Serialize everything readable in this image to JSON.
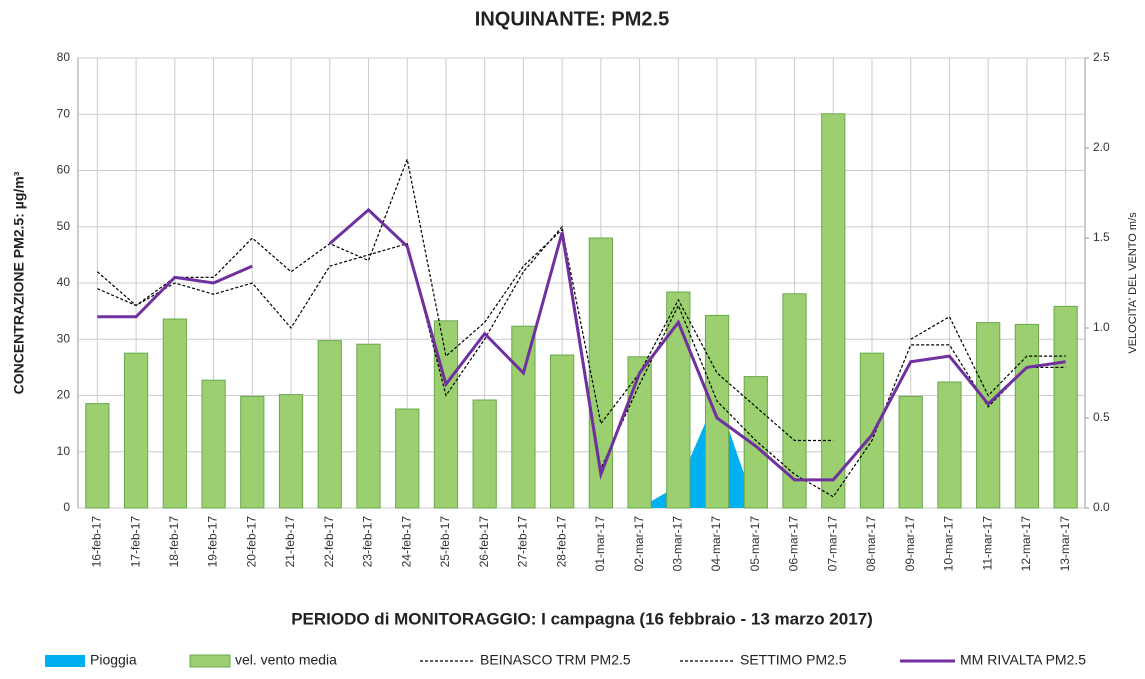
{
  "chart_data": {
    "type": "combo",
    "title": "INQUINANTE: PM2.5",
    "x_label": "PERIODO di MONITORAGGIO: I campagna (16 febbraio - 13 marzo 2017)",
    "y_label": "CONCENTRAZIONE PM2.5: µg/m³",
    "y2_label": "VELOCITA' DEL VENTO m/s",
    "categories": [
      "16-feb-17",
      "17-feb-17",
      "18-feb-17",
      "19-feb-17",
      "20-feb-17",
      "21-feb-17",
      "22-feb-17",
      "23-feb-17",
      "24-feb-17",
      "25-feb-17",
      "26-feb-17",
      "27-feb-17",
      "28-feb-17",
      "01-mar-17",
      "02-mar-17",
      "03-mar-17",
      "04-mar-17",
      "05-mar-17",
      "06-mar-17",
      "07-mar-17",
      "08-mar-17",
      "09-mar-17",
      "10-mar-17",
      "11-mar-17",
      "12-mar-17",
      "13-mar-17"
    ],
    "ylim": [
      0,
      80
    ],
    "yticks": [
      0,
      10,
      20,
      30,
      40,
      50,
      60,
      70,
      80
    ],
    "y2lim": [
      0,
      2.5
    ],
    "y2ticks": [
      {
        "value": 0,
        "label": "0.0"
      },
      {
        "value": 0.5,
        "label": "0.5"
      },
      {
        "value": 1,
        "label": "1.0"
      },
      {
        "value": 1.5,
        "label": "1.5"
      },
      {
        "value": 2,
        "label": "2.0"
      },
      {
        "value": 2.5,
        "label": "2.5"
      }
    ],
    "grid": true,
    "legend": "bottom",
    "series": [
      {
        "name": "Pioggia",
        "type": "area",
        "color": "#00b0f0",
        "values": [
          null,
          null,
          null,
          null,
          null,
          null,
          null,
          null,
          null,
          null,
          null,
          null,
          null,
          null,
          0,
          4,
          20,
          0,
          null,
          null,
          null,
          null,
          null,
          null,
          null,
          null
        ]
      },
      {
        "name": "vel. vento media",
        "type": "bar",
        "axis": "y2",
        "color": "#9bcf6f",
        "values": [
          0.58,
          0.86,
          1.05,
          0.71,
          0.62,
          0.63,
          0.93,
          0.91,
          0.55,
          1.04,
          0.6,
          1.01,
          0.85,
          1.5,
          0.84,
          1.2,
          1.07,
          0.73,
          1.19,
          2.19,
          0.86,
          0.62,
          0.7,
          1.03,
          1.02,
          1.12
        ]
      },
      {
        "name": "BEINASCO TRM PM2.5",
        "type": "line",
        "dash": true,
        "color": "#000000",
        "values": [
          42,
          36,
          41,
          41,
          48,
          42,
          47,
          44,
          62,
          27,
          33,
          43,
          49.5,
          15,
          24,
          37,
          24,
          18,
          12,
          12,
          null,
          30,
          34,
          20,
          27,
          27
        ]
      },
      {
        "name": "SETTIMO PM2.5",
        "type": "line",
        "dash": true,
        "color": "#000000",
        "values": [
          39,
          36,
          40,
          38,
          40,
          32,
          43,
          45,
          47,
          20,
          30,
          42,
          50,
          7,
          22,
          36,
          19,
          12,
          6,
          2,
          12,
          29,
          29,
          18,
          25,
          25
        ]
      },
      {
        "name": "MM RIVALTA PM2.5",
        "type": "line",
        "color": "#7030a0",
        "values": [
          34,
          34,
          41,
          40,
          43,
          null,
          47,
          53,
          46.5,
          22,
          31,
          24,
          49,
          6,
          24,
          33,
          16,
          11,
          5,
          5,
          13,
          26,
          27,
          18.5,
          25,
          26
        ]
      }
    ]
  }
}
